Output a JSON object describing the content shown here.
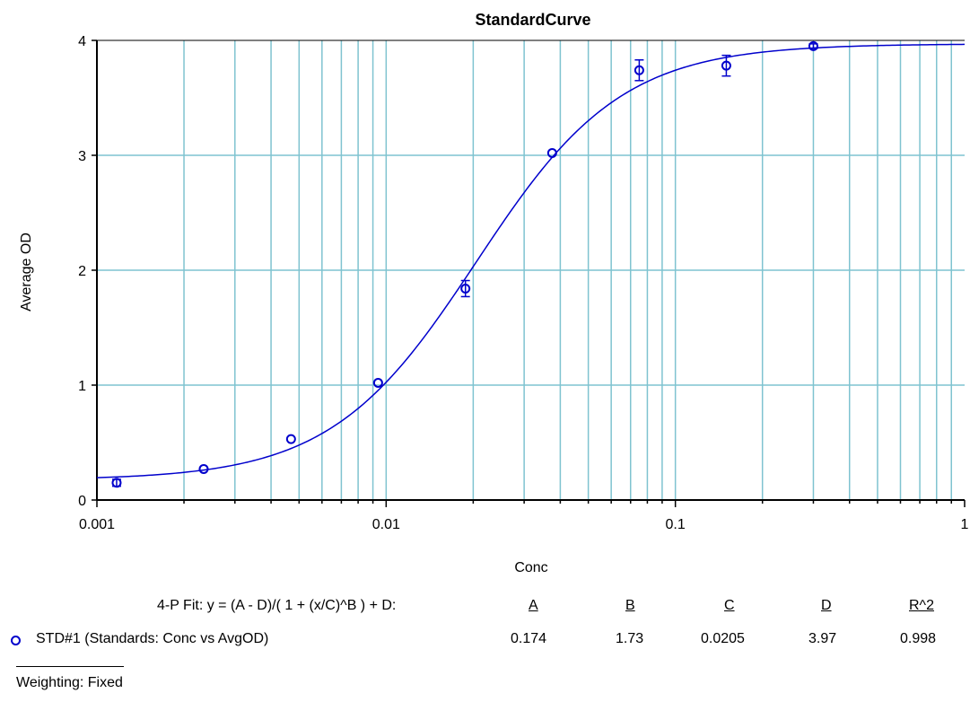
{
  "chart_data": {
    "type": "scatter",
    "title": "StandardCurve",
    "xlabel": "Conc",
    "ylabel": "Average OD",
    "x_scale": "log",
    "xlim": [
      0.001,
      1
    ],
    "ylim": [
      0,
      4
    ],
    "x_ticks": [
      "0.001",
      "0.01",
      "0.1",
      "1"
    ],
    "y_ticks": [
      "0",
      "1",
      "2",
      "3",
      "4"
    ],
    "grid": true,
    "series": [
      {
        "name": "STD#1 (Standards: Conc vs AvgOD)",
        "color": "#0000cc",
        "points": [
          {
            "x": 0.00117,
            "y": 0.15,
            "err": 0.03
          },
          {
            "x": 0.00234,
            "y": 0.27,
            "err": 0.0
          },
          {
            "x": 0.00469,
            "y": 0.53,
            "err": 0.0
          },
          {
            "x": 0.00938,
            "y": 1.02,
            "err": 0.0
          },
          {
            "x": 0.0188,
            "y": 1.84,
            "err": 0.07
          },
          {
            "x": 0.0375,
            "y": 3.02,
            "err": 0.0
          },
          {
            "x": 0.075,
            "y": 3.74,
            "err": 0.09
          },
          {
            "x": 0.15,
            "y": 3.78,
            "err": 0.09
          },
          {
            "x": 0.3,
            "y": 3.95,
            "err": 0.02
          }
        ]
      }
    ],
    "fit": {
      "model": "4-P",
      "A": 0.174,
      "B": 1.73,
      "C": 0.0205,
      "D": 3.97,
      "color": "#0000cc"
    }
  },
  "fit_table": {
    "equation_label": "4-P Fit:  y = (A - D)/( 1 + (x/C)^B ) + D:",
    "headers": [
      "A",
      "B",
      "C",
      "D",
      "R^2"
    ],
    "row_label": "STD#1 (Standards: Conc vs AvgOD)",
    "values": [
      "0.174",
      "1.73",
      "0.0205",
      "3.97",
      "0.998"
    ]
  },
  "footer": {
    "weighting": "Weighting: Fixed"
  }
}
